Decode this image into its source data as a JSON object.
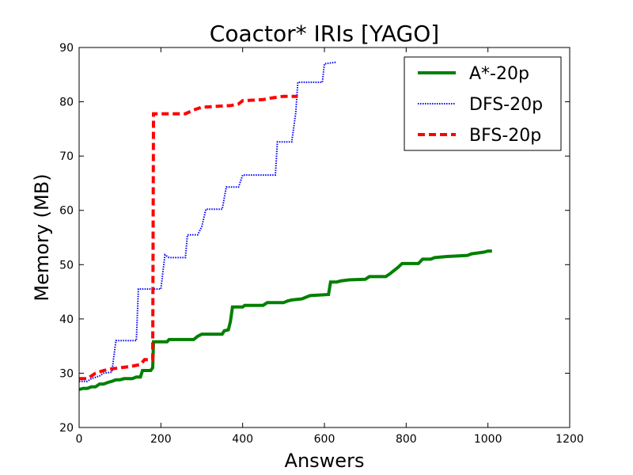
{
  "chart_data": {
    "type": "line",
    "title": "Coactor* IRIs [YAGO]",
    "xlabel": "Answers",
    "ylabel": "Memory (MB)",
    "xlim": [
      0,
      1200
    ],
    "ylim": [
      20,
      90
    ],
    "xticks": [
      0,
      200,
      400,
      600,
      800,
      1000,
      1200
    ],
    "yticks": [
      20,
      30,
      40,
      50,
      60,
      70,
      80,
      90
    ],
    "grid": false,
    "legend_position": "top-right",
    "series": [
      {
        "name": "A*-20p",
        "color": "#008000",
        "style": "solid",
        "points": [
          [
            0,
            27
          ],
          [
            10,
            27.2
          ],
          [
            20,
            27.2
          ],
          [
            30,
            27.5
          ],
          [
            40,
            27.5
          ],
          [
            50,
            28
          ],
          [
            60,
            28
          ],
          [
            70,
            28.3
          ],
          [
            80,
            28.5
          ],
          [
            90,
            28.8
          ],
          [
            100,
            28.8
          ],
          [
            110,
            29
          ],
          [
            130,
            29
          ],
          [
            140,
            29.3
          ],
          [
            150,
            29.3
          ],
          [
            155,
            30.5
          ],
          [
            175,
            30.5
          ],
          [
            180,
            31
          ],
          [
            182,
            35.8
          ],
          [
            215,
            35.8
          ],
          [
            220,
            36.2
          ],
          [
            280,
            36.2
          ],
          [
            290,
            36.8
          ],
          [
            300,
            37.2
          ],
          [
            350,
            37.2
          ],
          [
            355,
            37.8
          ],
          [
            365,
            38
          ],
          [
            370,
            39.5
          ],
          [
            375,
            42.2
          ],
          [
            400,
            42.2
          ],
          [
            405,
            42.5
          ],
          [
            450,
            42.5
          ],
          [
            460,
            43
          ],
          [
            500,
            43
          ],
          [
            510,
            43.3
          ],
          [
            520,
            43.5
          ],
          [
            545,
            43.7
          ],
          [
            555,
            44
          ],
          [
            565,
            44.3
          ],
          [
            610,
            44.5
          ],
          [
            615,
            46.8
          ],
          [
            630,
            46.8
          ],
          [
            640,
            47
          ],
          [
            660,
            47.2
          ],
          [
            700,
            47.3
          ],
          [
            710,
            47.8
          ],
          [
            750,
            47.8
          ],
          [
            760,
            48.3
          ],
          [
            780,
            49.5
          ],
          [
            790,
            50.2
          ],
          [
            830,
            50.2
          ],
          [
            840,
            51
          ],
          [
            860,
            51
          ],
          [
            870,
            51.3
          ],
          [
            900,
            51.5
          ],
          [
            950,
            51.7
          ],
          [
            960,
            52
          ],
          [
            990,
            52.3
          ],
          [
            1000,
            52.5
          ],
          [
            1010,
            52.5
          ]
        ]
      },
      {
        "name": "DFS-20p",
        "color": "#0000ff",
        "style": "dotted",
        "points": [
          [
            0,
            28.5
          ],
          [
            20,
            28.5
          ],
          [
            30,
            29
          ],
          [
            50,
            29.5
          ],
          [
            60,
            30
          ],
          [
            80,
            30.2
          ],
          [
            90,
            36
          ],
          [
            140,
            36
          ],
          [
            145,
            45.5
          ],
          [
            200,
            45.5
          ],
          [
            210,
            51.8
          ],
          [
            220,
            51.3
          ],
          [
            260,
            51.3
          ],
          [
            265,
            55.5
          ],
          [
            290,
            55.5
          ],
          [
            300,
            57
          ],
          [
            310,
            60.2
          ],
          [
            350,
            60.2
          ],
          [
            360,
            64.3
          ],
          [
            390,
            64.3
          ],
          [
            400,
            66.5
          ],
          [
            480,
            66.5
          ],
          [
            485,
            72.6
          ],
          [
            520,
            72.6
          ],
          [
            530,
            78
          ],
          [
            535,
            83.6
          ],
          [
            595,
            83.6
          ],
          [
            600,
            87
          ],
          [
            630,
            87.3
          ]
        ]
      },
      {
        "name": "BFS-20p",
        "color": "#ff0000",
        "style": "dashed",
        "points": [
          [
            0,
            29
          ],
          [
            20,
            29
          ],
          [
            30,
            29.5
          ],
          [
            40,
            30
          ],
          [
            60,
            30.5
          ],
          [
            80,
            30.8
          ],
          [
            100,
            31
          ],
          [
            130,
            31.3
          ],
          [
            150,
            31.6
          ],
          [
            160,
            32.5
          ],
          [
            180,
            32.5
          ],
          [
            182,
            77.8
          ],
          [
            260,
            77.8
          ],
          [
            280,
            78.5
          ],
          [
            300,
            79
          ],
          [
            370,
            79.3
          ],
          [
            390,
            79.6
          ],
          [
            400,
            80.2
          ],
          [
            450,
            80.4
          ],
          [
            470,
            80.7
          ],
          [
            500,
            81
          ],
          [
            535,
            81
          ]
        ]
      }
    ]
  }
}
